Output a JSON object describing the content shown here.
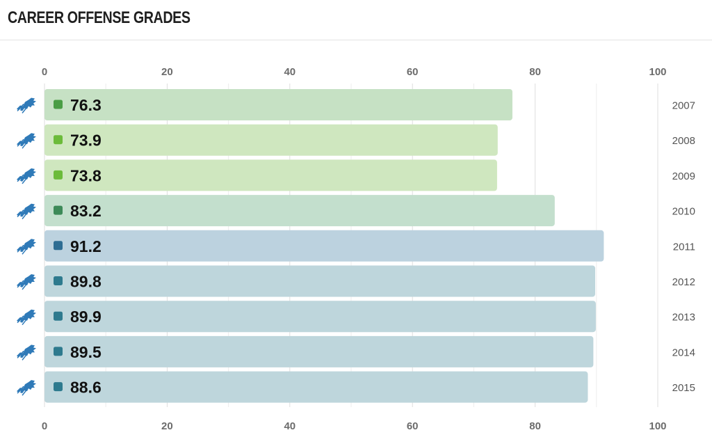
{
  "title": "CAREER OFFENSE GRADES",
  "team_icon": "detroit-lions-logo-icon",
  "chart_data": {
    "type": "bar",
    "orientation": "horizontal",
    "title": "CAREER OFFENSE GRADES",
    "xlim": [
      0,
      100
    ],
    "x_ticks": [
      0,
      20,
      40,
      60,
      80,
      100
    ],
    "grid": true,
    "categories": [
      "2007",
      "2008",
      "2009",
      "2010",
      "2011",
      "2012",
      "2013",
      "2014",
      "2015"
    ],
    "values": [
      76.3,
      73.9,
      73.8,
      83.2,
      91.2,
      89.8,
      89.9,
      89.5,
      88.6
    ],
    "value_labels": [
      "76.3",
      "73.9",
      "73.8",
      "83.2",
      "91.2",
      "89.8",
      "89.9",
      "89.5",
      "88.6"
    ],
    "bar_colors": [
      "#c6e1c4",
      "#cfe7bf",
      "#cfe7bf",
      "#c3dfcd",
      "#bcd2df",
      "#bed6dc",
      "#bed6dc",
      "#bed6dc",
      "#bed6dc"
    ],
    "marker_colors": [
      "#4a9d45",
      "#6cbb3a",
      "#6cbb3a",
      "#3d8a58",
      "#2e6d93",
      "#2e7a8e",
      "#2e7a8e",
      "#2e7a8e",
      "#2e7a8e"
    ],
    "icon_color": "#2f7ab8"
  }
}
